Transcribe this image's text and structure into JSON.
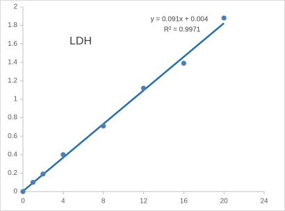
{
  "chart_data": {
    "type": "scatter",
    "series": [
      {
        "name": "LDH",
        "color": "#4a7ebb",
        "x": [
          0,
          1,
          2,
          4,
          8,
          12,
          16,
          20
        ],
        "values": [
          0.0,
          0.1,
          0.19,
          0.4,
          0.71,
          1.12,
          1.39,
          1.88
        ]
      }
    ],
    "trendline": {
      "slope": 0.091,
      "intercept": 0.004,
      "color": "#1f6fb4"
    },
    "annotations": [
      "y = 0.091x + 0.004",
      "R² = 0.9971",
      "LDH"
    ],
    "xlim": [
      0,
      24
    ],
    "xticks": [
      0,
      4,
      8,
      12,
      16,
      20,
      24
    ],
    "ylim": [
      0,
      2
    ],
    "yticks": [
      0,
      0.2,
      0.4,
      0.6,
      0.8,
      1,
      1.2,
      1.4,
      1.6,
      1.8,
      2
    ],
    "grid": false
  }
}
